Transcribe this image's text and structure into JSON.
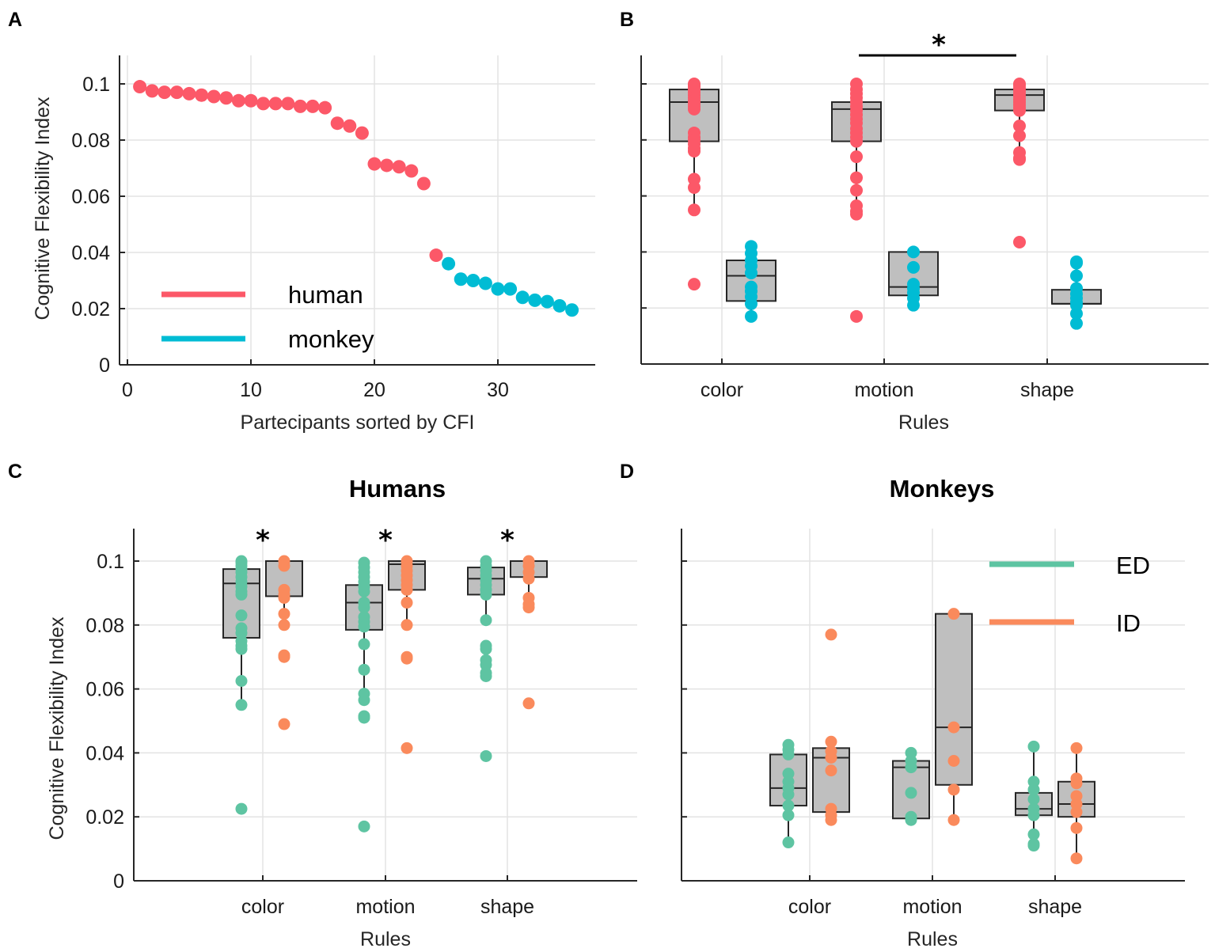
{
  "colors": {
    "human": "#fc5868",
    "monkey": "#00bcd4",
    "ED": "#5ec4a2",
    "ID": "#fa8a5c",
    "box_fill": "#bfbfbf"
  },
  "chart_data": [
    {
      "panel": "A",
      "type": "scatter",
      "title": "",
      "xlabel": "Partecipants sorted by CFI",
      "ylabel": "Cognitive Flexibility Index",
      "xlim": [
        -1,
        37.5
      ],
      "ylim": [
        0,
        0.11
      ],
      "xticks": [
        0,
        10,
        20,
        30
      ],
      "yticks": [
        0,
        0.02,
        0.04,
        0.06,
        0.08,
        0.1
      ],
      "ytick_labels": [
        "0",
        "0.02",
        "0.04",
        "0.06",
        "0.08",
        "0.1"
      ],
      "grid": true,
      "legend": {
        "placement": "bottom-left",
        "entries": [
          {
            "label": "human",
            "color_key": "human"
          },
          {
            "label": "monkey",
            "color_key": "monkey"
          }
        ]
      },
      "series": [
        {
          "name": "human",
          "color_key": "human",
          "x": [
            1,
            2,
            3,
            4,
            5,
            6,
            7,
            8,
            9,
            10,
            11,
            12,
            13,
            14,
            15,
            16,
            17,
            18,
            19,
            20,
            21,
            22,
            23,
            24,
            25
          ],
          "y": [
            0.099,
            0.0975,
            0.097,
            0.097,
            0.0965,
            0.096,
            0.0955,
            0.095,
            0.094,
            0.094,
            0.093,
            0.093,
            0.093,
            0.092,
            0.092,
            0.0915,
            0.086,
            0.085,
            0.0825,
            0.0715,
            0.071,
            0.0705,
            0.069,
            0.0645,
            0.039
          ]
        },
        {
          "name": "monkey",
          "color_key": "monkey",
          "x": [
            26,
            27,
            28,
            29,
            30,
            31,
            32,
            33,
            34,
            35,
            36
          ],
          "y": [
            0.036,
            0.0305,
            0.03,
            0.029,
            0.027,
            0.027,
            0.024,
            0.023,
            0.0225,
            0.021,
            0.0195
          ]
        }
      ]
    },
    {
      "panel": "B",
      "type": "box",
      "title": "",
      "xlabel": "Rules",
      "ylabel": "",
      "categories": [
        "color",
        "motion",
        "shape"
      ],
      "ylim": [
        0,
        0.11
      ],
      "yticks": [
        0,
        0.02,
        0.04,
        0.06,
        0.08,
        0.1
      ],
      "grid": true,
      "significance": [
        {
          "from": "motion",
          "to": "shape",
          "label": "*"
        }
      ],
      "groups": [
        {
          "category": "color",
          "series": "human",
          "color_key": "human",
          "q1": 0.0795,
          "median": 0.0935,
          "q3": 0.098,
          "whisker_low": 0.055,
          "whisker_high": 0.1,
          "points": [
            0.1,
            0.0995,
            0.099,
            0.098,
            0.097,
            0.096,
            0.095,
            0.094,
            0.093,
            0.092,
            0.091,
            0.0825,
            0.081,
            0.08,
            0.0785,
            0.077,
            0.076,
            0.066,
            0.063,
            0.055,
            0.0285
          ]
        },
        {
          "category": "color",
          "series": "monkey",
          "color_key": "monkey",
          "q1": 0.0225,
          "median": 0.0315,
          "q3": 0.037,
          "whisker_low": 0.017,
          "whisker_high": 0.042,
          "points": [
            0.042,
            0.0395,
            0.037,
            0.035,
            0.0325,
            0.0275,
            0.026,
            0.024,
            0.0215,
            0.017
          ]
        },
        {
          "category": "motion",
          "series": "human",
          "color_key": "human",
          "q1": 0.0795,
          "median": 0.091,
          "q3": 0.0935,
          "whisker_low": 0.054,
          "whisker_high": 0.1,
          "points": [
            0.1,
            0.098,
            0.0965,
            0.095,
            0.0935,
            0.092,
            0.0905,
            0.089,
            0.0875,
            0.086,
            0.084,
            0.0825,
            0.081,
            0.0795,
            0.074,
            0.0665,
            0.062,
            0.0565,
            0.0545,
            0.0535,
            0.017
          ]
        },
        {
          "category": "motion",
          "series": "monkey",
          "color_key": "monkey",
          "q1": 0.0245,
          "median": 0.0275,
          "q3": 0.04,
          "whisker_low": 0.021,
          "whisker_high": 0.04,
          "points": [
            0.04,
            0.0345,
            0.0285,
            0.027,
            0.0255,
            0.0235,
            0.021
          ]
        },
        {
          "category": "shape",
          "series": "human",
          "color_key": "human",
          "q1": 0.0905,
          "median": 0.096,
          "q3": 0.098,
          "whisker_low": 0.073,
          "whisker_high": 0.1,
          "points": [
            0.1,
            0.0995,
            0.0985,
            0.0975,
            0.0965,
            0.0955,
            0.0945,
            0.0935,
            0.0925,
            0.0915,
            0.0905,
            0.085,
            0.0815,
            0.0755,
            0.0735,
            0.073,
            0.0435
          ]
        },
        {
          "category": "shape",
          "series": "monkey",
          "color_key": "monkey",
          "q1": 0.0215,
          "median": 0.0215,
          "q3": 0.0265,
          "whisker_low": 0.0145,
          "whisker_high": 0.0365,
          "points": [
            0.0365,
            0.036,
            0.0315,
            0.027,
            0.025,
            0.0235,
            0.022,
            0.021,
            0.018,
            0.0145
          ]
        }
      ]
    },
    {
      "panel": "C",
      "type": "box",
      "title": "Humans",
      "xlabel": "Rules",
      "ylabel": "Cognitive Flexibility Index",
      "categories": [
        "color",
        "motion",
        "shape"
      ],
      "ylim": [
        0,
        0.11
      ],
      "yticks": [
        0,
        0.02,
        0.04,
        0.06,
        0.08,
        0.1
      ],
      "ytick_labels": [
        "0",
        "0.02",
        "0.04",
        "0.06",
        "0.08",
        "0.1"
      ],
      "grid": true,
      "significance": [
        {
          "category": "color",
          "label": "*"
        },
        {
          "category": "motion",
          "label": "*"
        },
        {
          "category": "shape",
          "label": "*"
        }
      ],
      "groups": [
        {
          "category": "color",
          "series": "ED",
          "color_key": "ED",
          "q1": 0.076,
          "median": 0.093,
          "q3": 0.0975,
          "whisker_low": 0.055,
          "whisker_high": 0.1,
          "points": [
            0.1,
            0.0995,
            0.0985,
            0.0975,
            0.0965,
            0.095,
            0.0935,
            0.092,
            0.0905,
            0.0895,
            0.083,
            0.079,
            0.0775,
            0.075,
            0.0735,
            0.0725,
            0.0625,
            0.055,
            0.0225
          ]
        },
        {
          "category": "color",
          "series": "ID",
          "color_key": "ID",
          "q1": 0.089,
          "median": 0.1,
          "q3": 0.1,
          "whisker_low": 0.08,
          "whisker_high": 0.1,
          "points": [
            0.1,
            0.0985,
            0.091,
            0.0895,
            0.0885,
            0.0835,
            0.08,
            0.0705,
            0.07,
            0.049
          ]
        },
        {
          "category": "motion",
          "series": "ED",
          "color_key": "ED",
          "q1": 0.0785,
          "median": 0.087,
          "q3": 0.0925,
          "whisker_low": 0.0565,
          "whisker_high": 0.1,
          "points": [
            0.0995,
            0.098,
            0.0965,
            0.095,
            0.0935,
            0.092,
            0.0905,
            0.087,
            0.0855,
            0.0825,
            0.081,
            0.0795,
            0.074,
            0.066,
            0.0585,
            0.0565,
            0.0515,
            0.051,
            0.017
          ]
        },
        {
          "category": "motion",
          "series": "ID",
          "color_key": "ID",
          "q1": 0.091,
          "median": 0.099,
          "q3": 0.1,
          "whisker_low": 0.08,
          "whisker_high": 0.1,
          "points": [
            0.1,
            0.0985,
            0.097,
            0.0955,
            0.094,
            0.0925,
            0.091,
            0.087,
            0.08,
            0.07,
            0.0695,
            0.0415
          ]
        },
        {
          "category": "shape",
          "series": "ED",
          "color_key": "ED",
          "q1": 0.0895,
          "median": 0.0945,
          "q3": 0.098,
          "whisker_low": 0.0815,
          "whisker_high": 0.1,
          "points": [
            0.1,
            0.0985,
            0.097,
            0.0955,
            0.094,
            0.0925,
            0.091,
            0.0895,
            0.0815,
            0.0735,
            0.0725,
            0.069,
            0.0675,
            0.065,
            0.064,
            0.039
          ]
        },
        {
          "category": "shape",
          "series": "ID",
          "color_key": "ID",
          "q1": 0.095,
          "median": 0.1,
          "q3": 0.1,
          "whisker_low": 0.0855,
          "whisker_high": 0.1,
          "points": [
            0.1,
            0.0985,
            0.0965,
            0.0945,
            0.0885,
            0.0865,
            0.0855,
            0.0555
          ]
        }
      ]
    },
    {
      "panel": "D",
      "type": "box",
      "title": "Monkeys",
      "xlabel": "Rules",
      "ylabel": "",
      "categories": [
        "color",
        "motion",
        "shape"
      ],
      "ylim": [
        0,
        0.11
      ],
      "yticks": [
        0,
        0.02,
        0.04,
        0.06,
        0.08,
        0.1
      ],
      "grid": true,
      "legend": {
        "placement": "top-right",
        "entries": [
          {
            "label": "ED",
            "color_key": "ED"
          },
          {
            "label": "ID",
            "color_key": "ID"
          }
        ]
      },
      "groups": [
        {
          "category": "color",
          "series": "ED",
          "color_key": "ED",
          "q1": 0.0235,
          "median": 0.029,
          "q3": 0.0395,
          "whisker_low": 0.012,
          "whisker_high": 0.0425,
          "points": [
            0.0425,
            0.041,
            0.0395,
            0.0335,
            0.031,
            0.029,
            0.027,
            0.0235,
            0.0205,
            0.012
          ]
        },
        {
          "category": "color",
          "series": "ID",
          "color_key": "ID",
          "q1": 0.0215,
          "median": 0.0385,
          "q3": 0.0415,
          "whisker_low": 0.019,
          "whisker_high": 0.0435,
          "points": [
            0.077,
            0.0435,
            0.0405,
            0.0385,
            0.0345,
            0.0225,
            0.0205,
            0.019
          ]
        },
        {
          "category": "motion",
          "series": "ED",
          "color_key": "ED",
          "q1": 0.0195,
          "median": 0.0355,
          "q3": 0.0375,
          "whisker_low": 0.019,
          "whisker_high": 0.04,
          "points": [
            0.04,
            0.0375,
            0.0355,
            0.0275,
            0.02,
            0.019
          ]
        },
        {
          "category": "motion",
          "series": "ID",
          "color_key": "ID",
          "q1": 0.03,
          "median": 0.048,
          "q3": 0.0835,
          "whisker_low": 0.019,
          "whisker_high": 0.0835,
          "points": [
            0.0835,
            0.048,
            0.0375,
            0.0285,
            0.019
          ]
        },
        {
          "category": "shape",
          "series": "ED",
          "color_key": "ED",
          "q1": 0.0205,
          "median": 0.0225,
          "q3": 0.0275,
          "whisker_low": 0.011,
          "whisker_high": 0.042,
          "points": [
            0.042,
            0.031,
            0.0285,
            0.0255,
            0.0225,
            0.0205,
            0.0145,
            0.0115,
            0.011
          ]
        },
        {
          "category": "shape",
          "series": "ID",
          "color_key": "ID",
          "q1": 0.02,
          "median": 0.024,
          "q3": 0.031,
          "whisker_low": 0.007,
          "whisker_high": 0.0415,
          "points": [
            0.0415,
            0.032,
            0.0305,
            0.0265,
            0.024,
            0.0215,
            0.0165,
            0.007
          ]
        }
      ]
    }
  ],
  "panel_labels": [
    "A",
    "B",
    "C",
    "D"
  ]
}
